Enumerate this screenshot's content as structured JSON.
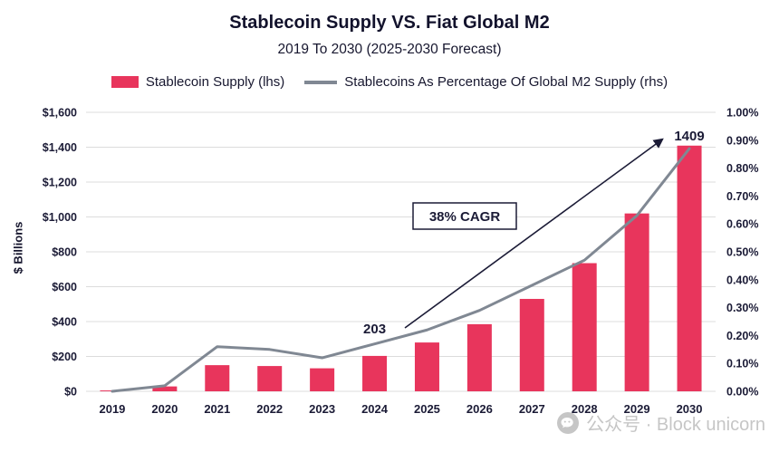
{
  "chart_data": {
    "type": "bar",
    "title": "Stablecoin Supply VS. Fiat Global M2",
    "subtitle": "2019 To 2030 (2025-2030 Forecast)",
    "categories": [
      "2019",
      "2020",
      "2021",
      "2022",
      "2023",
      "2024",
      "2025",
      "2026",
      "2027",
      "2028",
      "2029",
      "2030"
    ],
    "series": [
      {
        "name": "Stablecoin Supply (lhs)",
        "type": "bar",
        "axis": "left",
        "values": [
          5,
          28,
          150,
          145,
          132,
          203,
          280,
          385,
          530,
          735,
          1020,
          1409
        ]
      },
      {
        "name": "Stablecoins As Percentage Of Global M2 Supply (rhs)",
        "type": "line",
        "axis": "right",
        "values": [
          0.0,
          0.02,
          0.16,
          0.15,
          0.12,
          0.17,
          0.22,
          0.29,
          0.38,
          0.47,
          0.63,
          0.87
        ]
      }
    ],
    "ylabel_left": "$ Billions",
    "ylim_left": [
      0,
      1600
    ],
    "ylim_right": [
      0,
      1.0
    ],
    "left_ticks": [
      "$0",
      "$200",
      "$400",
      "$600",
      "$800",
      "$1,000",
      "$1,200",
      "$1,400",
      "$1,600"
    ],
    "right_ticks": [
      "0.00%",
      "0.10%",
      "0.20%",
      "0.30%",
      "0.40%",
      "0.50%",
      "0.60%",
      "0.70%",
      "0.80%",
      "0.90%",
      "1.00%"
    ],
    "point_labels": [
      {
        "index": 5,
        "text": "203",
        "dy": -25
      },
      {
        "index": 11,
        "text": "1409",
        "dy": -6
      }
    ],
    "annotation": {
      "text": "38% CAGR"
    },
    "grid": true,
    "legend_position": "top",
    "colors": {
      "bar": "#e8355c",
      "line": "#808893",
      "grid": "#dcdcdc",
      "text": "#1b1b36"
    }
  },
  "watermark": {
    "text": "公众号 · Block unicorn"
  }
}
